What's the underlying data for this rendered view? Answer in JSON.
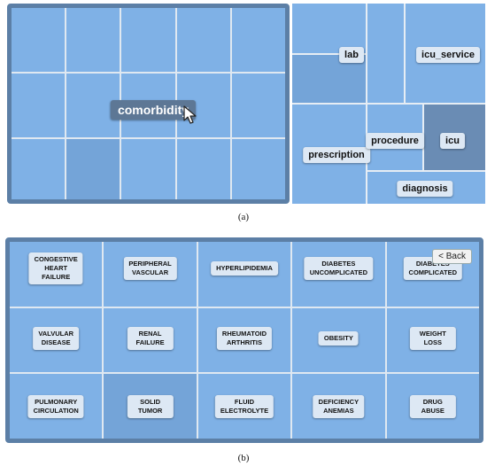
{
  "panel_a": {
    "focus_label": "comorbidity",
    "tiles": [
      {
        "id": "lab",
        "label": "lab"
      },
      {
        "id": "icu_service",
        "label": "icu_service"
      },
      {
        "id": "prescription",
        "label": "prescription"
      },
      {
        "id": "procedure",
        "label": "procedure"
      },
      {
        "id": "icu",
        "label": "icu"
      },
      {
        "id": "diagnosis",
        "label": "diagnosis"
      }
    ],
    "caption": "(a)"
  },
  "panel_b": {
    "back_label": "< Back",
    "cells": [
      "CONGESTIVE\nHEART FAILURE",
      "PERIPHERAL\nVASCULAR",
      "HYPERLIPIDEMIA",
      "DIABETES\nUNCOMPLICATED",
      "DIABETES\nCOMPLICATED",
      "VALVULAR\nDISEASE",
      "RENAL FAILURE",
      "RHEUMATOID\nARTHRITIS",
      "OBESITY",
      "WEIGHT LOSS",
      "PULMONARY\nCIRCULATION",
      "SOLID TUMOR",
      "FLUID\nELECTROLYTE",
      "DEFICIENCY\nANEMIAS",
      "DRUG ABUSE"
    ],
    "caption": "(b)"
  },
  "colors": {
    "cell": "#7fb1e6",
    "cell_highlight": "#74a4d8",
    "cell_selected": "#6a8cb4",
    "frame": "#5c7fa6",
    "label_bg": "#dde8f4"
  }
}
